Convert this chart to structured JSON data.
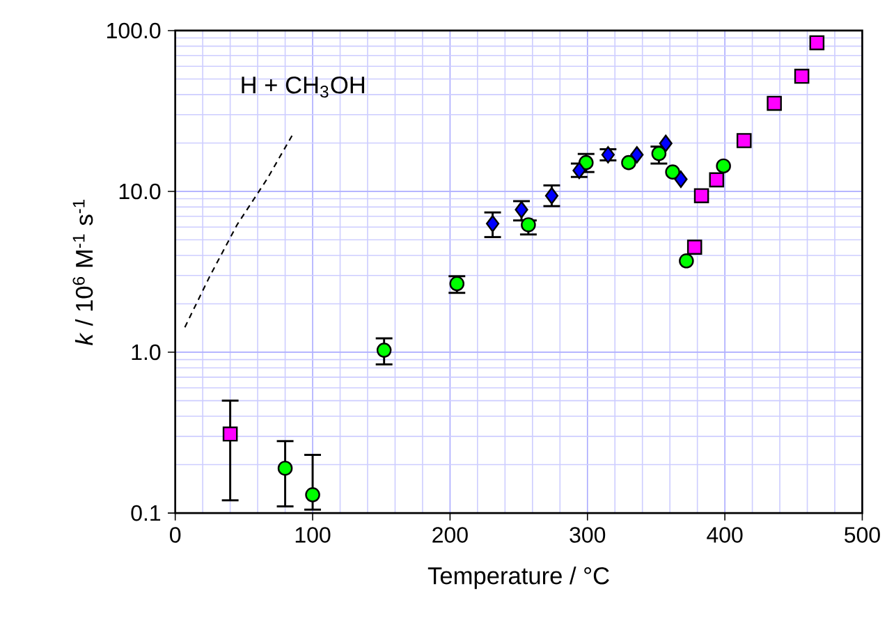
{
  "chart_data": {
    "type": "scatter",
    "xlabel": "Temperature / °C",
    "ylabel": "*k* / 10$^{6}$ M$^{-1}$ s$^{-1}$",
    "log": "y",
    "grid": true,
    "xlim": [
      0,
      500
    ],
    "ylim": [
      0.1,
      100
    ],
    "xticks": [
      0,
      100,
      200,
      300,
      400,
      500
    ],
    "yticks": [
      {
        "value": 0.1,
        "label": "0.1"
      },
      {
        "value": 1,
        "label": "1.0"
      },
      {
        "value": 10,
        "label": "10.0"
      },
      {
        "value": 100,
        "label": "100.0"
      }
    ],
    "annotations": [
      "H + CH$_{3}$OH"
    ],
    "series": [
      {
        "type": "line",
        "color": "#000000",
        "line_style": "dashed",
        "marker": "none",
        "x": [
          7,
          25,
          45,
          67,
          86
        ],
        "values": [
          1.43,
          2.95,
          6.2,
          12,
          23
        ]
      },
      {
        "color": "#00ff00",
        "marker": "circle",
        "x": [
          80,
          100,
          152,
          205,
          257,
          299,
          330,
          352,
          362,
          372,
          399
        ],
        "values": [
          0.19,
          0.13,
          1.03,
          2.67,
          6.2,
          15.1,
          15.1,
          17.2,
          13.2,
          3.7,
          14.4
        ],
        "errors": [
          [
            0.11,
            0.28
          ],
          [
            0.105,
            0.23
          ],
          [
            0.84,
            1.22
          ],
          [
            2.34,
            2.97
          ],
          [
            5.4,
            6.6
          ],
          [
            13.2,
            17.1
          ],
          null,
          [
            14.9,
            19
          ],
          null,
          null,
          null
        ]
      },
      {
        "color": "#0000ff",
        "marker": "diamond",
        "x": [
          231,
          252,
          274,
          294,
          315,
          336,
          357,
          368
        ],
        "values": [
          6.3,
          7.7,
          9.4,
          13.5,
          16.9,
          16.9,
          19.9,
          11.9
        ],
        "errors": [
          [
            5.2,
            7.4
          ],
          [
            6.6,
            8.7
          ],
          [
            8.1,
            10.9
          ],
          [
            12.3,
            14.9
          ],
          [
            15.6,
            18.3
          ],
          null,
          null,
          null
        ]
      },
      {
        "color": "#ff00ff",
        "marker": "square",
        "x": [
          40,
          378,
          383,
          394,
          414,
          436,
          456,
          467
        ],
        "values": [
          0.31,
          4.5,
          9.4,
          11.8,
          20.7,
          35.3,
          52,
          84
        ],
        "errors": [
          [
            0.12,
            0.5
          ],
          null,
          null,
          null,
          null,
          null,
          null,
          null
        ]
      }
    ]
  }
}
